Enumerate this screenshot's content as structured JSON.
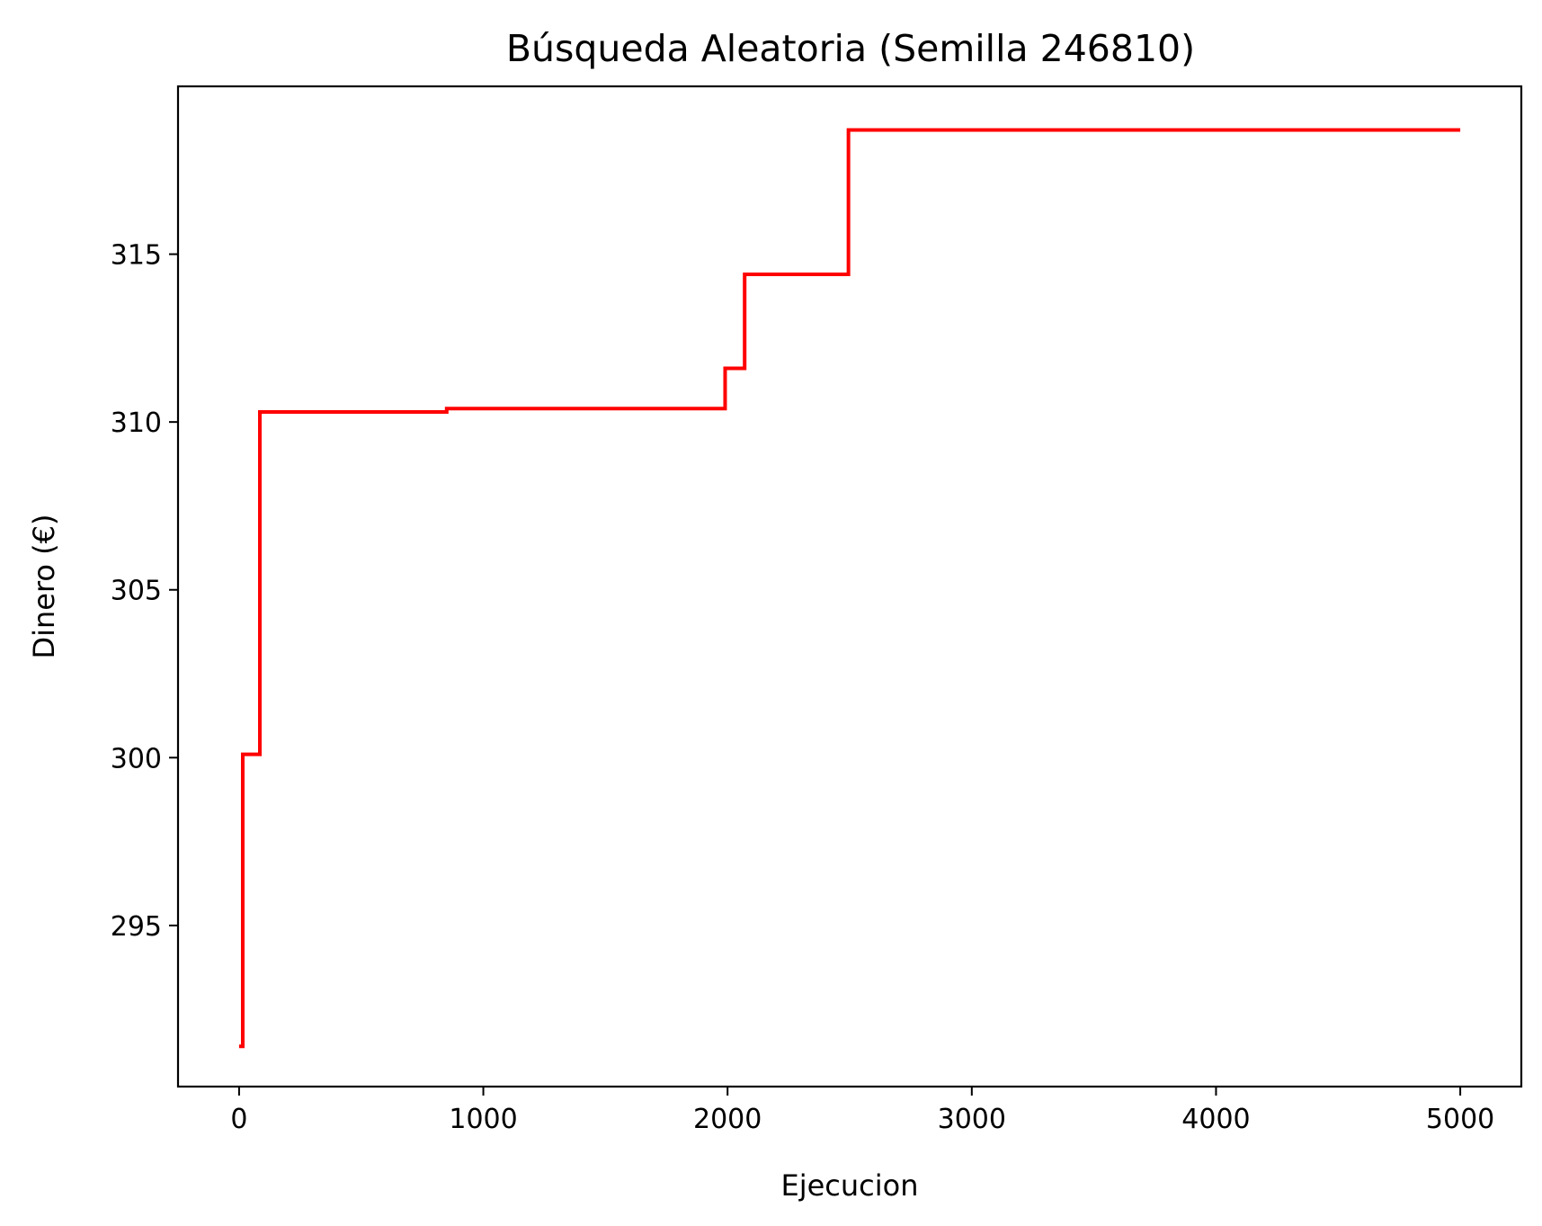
{
  "chart_data": {
    "type": "line",
    "title": "Búsqueda Aleatoria (Semilla 246810)",
    "xlabel": "Ejecucion",
    "ylabel": "Dinero (€)",
    "xlim": [
      -250,
      5250
    ],
    "ylim": [
      290.2,
      320.0
    ],
    "xticks": [
      0,
      1000,
      2000,
      3000,
      4000,
      5000
    ],
    "xtick_labels": [
      "0",
      "1000",
      "2000",
      "3000",
      "4000",
      "5000"
    ],
    "yticks": [
      295,
      300,
      305,
      310,
      315
    ],
    "ytick_labels": [
      "295",
      "300",
      "305",
      "310",
      "315"
    ],
    "grid": false,
    "legend": false,
    "series": [
      {
        "color": "#ff0000",
        "step": true,
        "x": [
          0,
          15,
          85,
          850,
          1990,
          2070,
          2495,
          5000
        ],
        "y": [
          291.4,
          300.1,
          310.3,
          310.4,
          311.6,
          314.4,
          318.7,
          318.7
        ]
      }
    ]
  }
}
